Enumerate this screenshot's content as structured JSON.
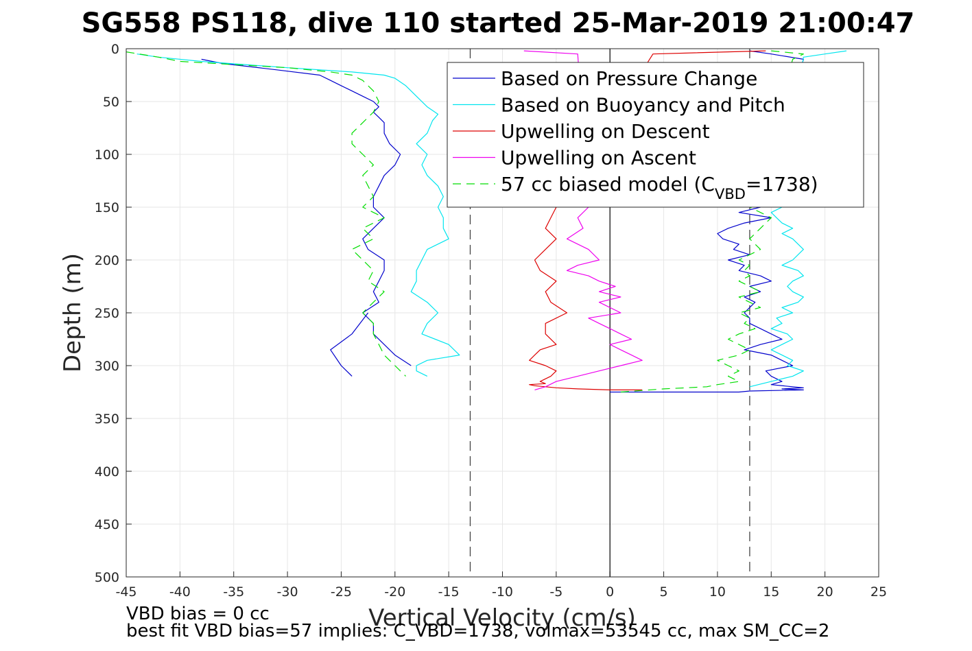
{
  "chart_data": {
    "type": "line",
    "title": "SG558 PS118, dive 110 started 25-Mar-2019 21:00:47",
    "xlabel": "Vertical Velocity (cm/s)",
    "ylabel": "Depth (m)",
    "xlim": [
      -45,
      25
    ],
    "ylim": [
      0,
      500
    ],
    "y_reversed": true,
    "grid": true,
    "legend_position": "top-right",
    "x_ticks": [
      "-45",
      "-40",
      "-35",
      "-30",
      "-25",
      "-20",
      "-15",
      "-10",
      "-5",
      "0",
      "5",
      "10",
      "15",
      "20",
      "25"
    ],
    "y_ticks": [
      "0",
      "50",
      "100",
      "150",
      "200",
      "250",
      "300",
      "350",
      "400",
      "450",
      "500"
    ],
    "reference_lines": {
      "vertical_dashed": [
        -13,
        13
      ],
      "vertical_solid": [
        0
      ]
    },
    "series": [
      {
        "name": "Based on Pressure Change",
        "color": "#0000cc",
        "style": "solid",
        "x": [
          -38,
          -37,
          -36,
          -31,
          -27,
          -26,
          -25,
          -24,
          -23,
          -22,
          -21.5,
          -22,
          -21.5,
          -21,
          -21,
          -20.5,
          -19.5,
          -20,
          -21,
          -21.5,
          -22,
          -22,
          -21,
          -22,
          -23,
          -22.5,
          -21,
          -21,
          -21.5,
          -22,
          -21.5,
          -23,
          -22,
          -22,
          -21,
          -20,
          -18.5
        ],
        "y": [
          10,
          12,
          14,
          20,
          25,
          30,
          35,
          40,
          45,
          50,
          55,
          60,
          65,
          70,
          80,
          90,
          100,
          110,
          120,
          130,
          140,
          150,
          160,
          170,
          180,
          190,
          200,
          210,
          220,
          230,
          240,
          250,
          260,
          270,
          280,
          290,
          300
        ],
        "descent_lower": {
          "x": [
            -22.5,
            -24,
            -26,
            -25,
            -24
          ],
          "y": [
            250,
            270,
            285,
            300,
            310
          ]
        },
        "ascent": {
          "x": [
            13,
            15,
            18,
            14,
            12,
            15,
            12.5,
            11,
            10,
            10.5,
            12,
            11.5,
            13,
            11,
            12.5,
            12,
            14,
            15,
            13,
            14,
            12.5,
            13.5,
            13,
            12.5,
            13,
            13,
            14,
            15,
            16,
            14,
            12.5,
            15,
            16,
            17,
            14.5,
            15,
            16,
            15,
            17,
            18,
            16,
            18,
            13,
            12,
            10,
            8,
            5,
            2,
            0
          ],
          "y": [
            2,
            5,
            10,
            150,
            155,
            160,
            165,
            170,
            175,
            180,
            185,
            190,
            195,
            200,
            205,
            210,
            215,
            220,
            225,
            230,
            235,
            240,
            245,
            250,
            255,
            260,
            265,
            270,
            275,
            280,
            285,
            290,
            295,
            300,
            305,
            310,
            315,
            318,
            320,
            321,
            322,
            323,
            324,
            325,
            325,
            325,
            325,
            325,
            325
          ]
        }
      },
      {
        "name": "Based on Buoyancy and Pitch",
        "color": "#00e5ee",
        "style": "solid",
        "x": [
          -44,
          -42,
          -38,
          -30,
          -24,
          -21,
          -20,
          -19,
          -18,
          -17,
          -16,
          -16.5,
          -17,
          -18,
          -17,
          -17.5,
          -17,
          -16,
          -15.5,
          -16,
          -15.5,
          -15.5,
          -15,
          -17,
          -17.5,
          -18,
          -18,
          -18.5,
          -17,
          -16,
          -17,
          -17.5,
          -15,
          -14,
          -17,
          -18,
          -18,
          -17
        ],
        "y": [
          5,
          8,
          12,
          18,
          22,
          25,
          28,
          35,
          45,
          55,
          62,
          68,
          80,
          90,
          100,
          110,
          120,
          130,
          140,
          150,
          160,
          170,
          180,
          190,
          200,
          210,
          220,
          230,
          240,
          250,
          260,
          270,
          280,
          290,
          295,
          300,
          305,
          310
        ],
        "ascent": {
          "x": [
            22,
            20,
            18,
            16,
            15,
            15.5,
            16,
            17,
            16,
            17,
            18,
            17,
            16,
            17.5,
            18,
            17,
            16.5,
            17,
            18,
            17.5,
            16,
            17,
            15.5,
            16,
            15,
            16.5,
            17,
            16,
            15,
            16,
            17,
            16.5,
            18,
            17,
            15,
            13
          ],
          "y": [
            2,
            5,
            8,
            150,
            155,
            160,
            165,
            170,
            175,
            180,
            190,
            200,
            205,
            210,
            215,
            220,
            225,
            230,
            235,
            240,
            245,
            250,
            255,
            260,
            265,
            270,
            275,
            280,
            285,
            290,
            295,
            300,
            305,
            310,
            315,
            320
          ]
        }
      },
      {
        "name": "Upwelling on Descent",
        "color": "#dd0000",
        "style": "solid",
        "x": [
          14.5,
          4,
          -5,
          -5.5,
          -6,
          -5,
          -6,
          -7,
          -6.5,
          -5,
          -6,
          -5.5,
          -4,
          -6,
          -6,
          -5,
          -6.5,
          -7,
          -7.5,
          -6,
          -5,
          -5.5,
          -6.5,
          -6,
          -7.5,
          -7,
          -6,
          -5,
          -3,
          0,
          3
        ],
        "y": [
          2,
          5,
          150,
          160,
          170,
          180,
          190,
          200,
          210,
          220,
          230,
          240,
          250,
          260,
          270,
          280,
          285,
          290,
          295,
          300,
          305,
          310,
          315,
          317,
          318,
          319,
          320,
          321,
          322,
          323,
          323
        ]
      },
      {
        "name": "Upwelling on Ascent",
        "color": "#ee00ee",
        "style": "solid",
        "x": [
          -8,
          -3,
          -2,
          -3,
          -2.5,
          -4,
          -2,
          -1,
          -3,
          -4,
          -2,
          -1,
          0.5,
          -1,
          1,
          -1,
          0,
          1,
          -2,
          -1,
          0,
          1,
          2,
          0,
          1,
          2,
          3,
          1,
          -1,
          -3,
          -5,
          -6,
          -7
        ],
        "y": [
          2,
          5,
          150,
          160,
          170,
          180,
          190,
          200,
          205,
          210,
          215,
          220,
          225,
          230,
          235,
          240,
          245,
          250,
          255,
          260,
          265,
          270,
          275,
          280,
          285,
          290,
          295,
          300,
          305,
          310,
          315,
          320,
          323
        ]
      },
      {
        "name": "57 cc biased model (C_VBD=1738)",
        "color": "#00dd00",
        "style": "dashed",
        "x": [
          -45,
          -42,
          -40,
          -30,
          -26,
          -24,
          -23,
          -22,
          -21.5,
          -22,
          -23,
          -24,
          -24,
          -23,
          -22,
          -23,
          -22.5,
          -22,
          -23,
          -21,
          -23,
          -22,
          -24,
          -23,
          -22,
          -22.5,
          -21,
          -22,
          -23,
          -22,
          -22,
          -21.5,
          -21,
          -20,
          -19
        ],
        "y": [
          3,
          8,
          12,
          18,
          22,
          25,
          30,
          40,
          50,
          60,
          70,
          80,
          90,
          100,
          110,
          120,
          130,
          140,
          150,
          160,
          170,
          180,
          190,
          200,
          210,
          220,
          230,
          240,
          250,
          260,
          270,
          280,
          290,
          300,
          310
        ],
        "ascent": {
          "x": [
            15,
            18,
            17,
            13,
            14,
            15,
            14,
            13,
            14,
            12,
            13,
            12.5,
            13,
            12,
            13,
            14,
            12,
            13,
            14,
            12,
            13,
            12.5,
            13.5,
            12,
            11,
            12,
            13,
            12,
            10,
            11,
            12,
            11,
            12,
            10,
            9,
            5,
            1
          ],
          "y": [
            2,
            5,
            10,
            150,
            155,
            160,
            170,
            180,
            190,
            200,
            205,
            210,
            215,
            220,
            225,
            230,
            235,
            240,
            245,
            250,
            255,
            260,
            265,
            270,
            275,
            280,
            285,
            290,
            295,
            300,
            305,
            310,
            315,
            318,
            320,
            322,
            325
          ]
        }
      }
    ],
    "legend_entries": [
      {
        "label": "Based on Pressure Change",
        "color": "#0000cc",
        "style": "solid"
      },
      {
        "label": "Based on Buoyancy and Pitch",
        "color": "#00e5ee",
        "style": "solid"
      },
      {
        "label": "Upwelling on Descent",
        "color": "#dd0000",
        "style": "solid"
      },
      {
        "label": "Upwelling on Ascent",
        "color": "#ee00ee",
        "style": "solid"
      },
      {
        "label_prefix": "57 cc biased model (C",
        "label_sub": "VBD",
        "label_suffix": "=1738)",
        "color": "#00dd00",
        "style": "dashed"
      }
    ],
    "annotations": [
      "VBD bias = 0 cc",
      "best fit VBD bias=57 implies: C_VBD=1738, volmax=53545 cc, max SM_CC=2"
    ]
  }
}
